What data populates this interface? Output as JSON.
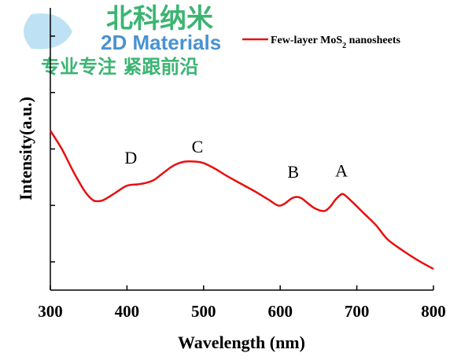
{
  "watermark": {
    "brand_cn": "北科纳米",
    "brand_en": "2D Materials",
    "slogan_cn": "专业专注 紧跟前沿",
    "color_green": "#1aa85a",
    "color_blue": "#2a7fc8"
  },
  "chart_data": {
    "type": "line",
    "xlabel": "Wavelength (nm)",
    "ylabel": "Intensity(a.u.)",
    "xlim": [
      300,
      800
    ],
    "ylim": [
      0,
      1
    ],
    "x_ticks": [
      300,
      400,
      500,
      600,
      700,
      800
    ],
    "y_ticks": [
      0.1,
      0.3,
      0.5,
      0.7,
      0.9
    ],
    "y_tick_labels_shown": false,
    "grid": false,
    "legend_position": "top-right",
    "series": [
      {
        "name": "Few-layer MoS2 nanosheets",
        "color": "#e81010",
        "x": [
          300,
          315,
          330,
          345,
          355,
          362,
          370,
          385,
          400,
          415,
          425,
          435,
          445,
          460,
          475,
          490,
          500,
          515,
          530,
          550,
          570,
          585,
          597,
          605,
          615,
          622,
          628,
          635,
          645,
          657,
          665,
          672,
          680,
          685,
          695,
          710,
          725,
          740,
          760,
          780,
          800
        ],
        "y": [
          0.565,
          0.5,
          0.42,
          0.35,
          0.32,
          0.315,
          0.32,
          0.345,
          0.37,
          0.375,
          0.38,
          0.39,
          0.41,
          0.44,
          0.455,
          0.455,
          0.45,
          0.43,
          0.405,
          0.375,
          0.345,
          0.32,
          0.3,
          0.305,
          0.325,
          0.33,
          0.325,
          0.31,
          0.29,
          0.28,
          0.295,
          0.32,
          0.34,
          0.335,
          0.31,
          0.27,
          0.23,
          0.18,
          0.14,
          0.105,
          0.075
        ]
      }
    ],
    "annotations": [
      {
        "text": "D",
        "x": 405,
        "y": 0.42
      },
      {
        "text": "C",
        "x": 492,
        "y": 0.46
      },
      {
        "text": "B",
        "x": 617,
        "y": 0.37
      },
      {
        "text": "A",
        "x": 680,
        "y": 0.375
      }
    ]
  }
}
